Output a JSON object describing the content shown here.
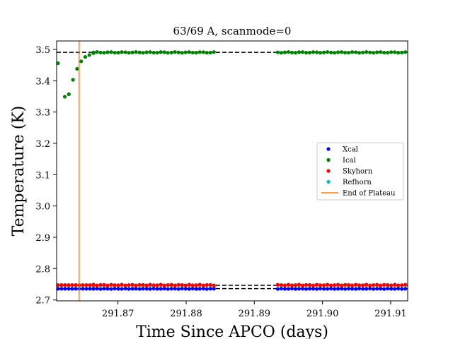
{
  "chart_data": {
    "type": "scatter",
    "title": "63/69 A, scanmode=0",
    "xlabel": "Time Since APCO (days)",
    "ylabel": "Temperature (K)",
    "xlim": [
      291.861,
      291.9125
    ],
    "ylim": [
      2.697,
      3.527
    ],
    "xticks": [
      291.87,
      291.88,
      291.89,
      291.9,
      291.91
    ],
    "xtick_labels": [
      "291.87",
      "291.88",
      "291.89",
      "291.90",
      "291.91"
    ],
    "yticks": [
      2.7,
      2.8,
      2.9,
      3.0,
      3.1,
      3.2,
      3.3,
      3.4,
      3.5
    ],
    "ytick_labels": [
      "2.7",
      "2.8",
      "2.9",
      "3.0",
      "3.1",
      "3.2",
      "3.3",
      "3.4",
      "3.5"
    ],
    "grid": false,
    "legend_position": "right",
    "gap": [
      291.8845,
      291.8932
    ],
    "end_of_plateau_x": 291.8643,
    "reference_lines": [
      3.4905,
      2.7465,
      2.7362
    ],
    "ical_initial": {
      "x": [
        291.8612,
        291.8622,
        291.8628,
        291.8634,
        291.864,
        291.8646,
        291.8652,
        291.8658,
        291.8664
      ],
      "y": [
        3.456,
        3.349,
        3.357,
        3.403,
        3.438,
        3.462,
        3.476,
        3.482,
        3.488
      ]
    },
    "series": [
      {
        "name": "Xcal",
        "color": "#0000ff",
        "base": 2.7355,
        "jitter": 0.0006
      },
      {
        "name": "Ical",
        "color": "#008000",
        "base": 3.4905,
        "jitter": 0.0012
      },
      {
        "name": "Skyhorn",
        "color": "#ff0000",
        "base": 2.7475,
        "jitter": 0.0015
      },
      {
        "name": "Refhorn",
        "color": "#00bfbf",
        "base": 2.747,
        "jitter": 0.0006
      }
    ],
    "legend": [
      {
        "label": "Xcal",
        "color": "#0000ff",
        "kind": "marker"
      },
      {
        "label": "Ical",
        "color": "#008000",
        "kind": "marker"
      },
      {
        "label": "Skyhorn",
        "color": "#ff0000",
        "kind": "marker"
      },
      {
        "label": "Refhorn",
        "color": "#00bfbf",
        "kind": "marker"
      },
      {
        "label": "End of Plateau",
        "color": "#ff7f0e",
        "kind": "line"
      }
    ]
  }
}
